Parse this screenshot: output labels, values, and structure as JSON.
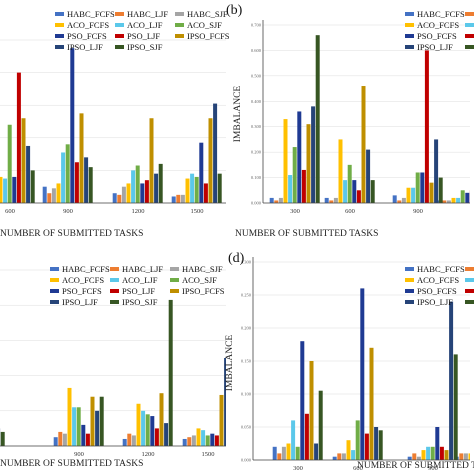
{
  "chart_data": [
    {
      "id": "a",
      "type": "bar",
      "panel_label": "",
      "xlabel": "NUMBER OF SUBMITTED TASKS",
      "ylabel": "",
      "categories": [
        "",
        "600",
        "900",
        "1200",
        "1500"
      ],
      "ylim": [
        0,
        1
      ],
      "yticks": [],
      "grid": true,
      "legend": "top-right",
      "series": [
        {
          "name": "HABC_FCFS",
          "values": [
            0.12,
            0.08,
            0.1,
            0.06,
            0.04
          ]
        },
        {
          "name": "HABC_LJF",
          "values": [
            0.1,
            0.06,
            0.06,
            0.05,
            0.05
          ]
        },
        {
          "name": "HABC_SJF",
          "values": [
            0.12,
            0.12,
            0.09,
            0.1,
            0.05
          ]
        },
        {
          "name": "ACO_FCFS",
          "values": [
            0.12,
            0.16,
            0.12,
            0.12,
            0.15
          ]
        },
        {
          "name": "ACO_LJF",
          "values": [
            0.12,
            0.15,
            0.31,
            0.2,
            0.18
          ]
        },
        {
          "name": "ACO_SJF",
          "values": [
            0.5,
            0.48,
            0.36,
            0.23,
            0.16
          ]
        },
        {
          "name": "PSO_FCFS",
          "values": [
            0.12,
            0.16,
            0.95,
            0.12,
            0.37
          ]
        },
        {
          "name": "PSO_LJF",
          "values": [
            0.8,
            0.8,
            0.25,
            0.14,
            0.12
          ]
        },
        {
          "name": "IPSO_FCFS",
          "values": [
            0.2,
            0.52,
            0.55,
            0.52,
            0.52
          ]
        },
        {
          "name": "IPSO_LJF",
          "values": [
            0.2,
            0.35,
            0.28,
            0.18,
            0.61
          ]
        },
        {
          "name": "IPSO_SJF",
          "values": [
            0.25,
            0.2,
            0.22,
            0.24,
            0.18
          ]
        }
      ]
    },
    {
      "id": "b",
      "type": "bar",
      "panel_label": "(b)",
      "xlabel": "NUMBER OF SUBMITTED TASKS",
      "ylabel": "IMBALANCE",
      "categories": [
        "300",
        "600",
        "900",
        ""
      ],
      "ylim": [
        0,
        0.7
      ],
      "yticks": [
        "0.000",
        "0.100",
        "0.200",
        "0.300",
        "0.400",
        "0.500",
        "0.600",
        "0.700"
      ],
      "grid": true,
      "legend": "top-right",
      "series": [
        {
          "name": "HABC_FCFS",
          "values": [
            0.02,
            0.02,
            0.03,
            0.01
          ]
        },
        {
          "name": "HABC_LJF",
          "values": [
            0.01,
            0.01,
            0.01,
            0.01
          ]
        },
        {
          "name": "HABC_SJF",
          "values": [
            0.02,
            0.02,
            0.02,
            0.01
          ]
        },
        {
          "name": "ACO_FCFS",
          "values": [
            0.33,
            0.25,
            0.06,
            0.02
          ]
        },
        {
          "name": "ACO_LJF",
          "values": [
            0.11,
            0.09,
            0.06,
            0.02
          ]
        },
        {
          "name": "ACO_SJF",
          "values": [
            0.22,
            0.15,
            0.12,
            0.05
          ]
        },
        {
          "name": "PSO_FCFS",
          "values": [
            0.36,
            0.09,
            0.12,
            0.04
          ]
        },
        {
          "name": "PSO_LJF",
          "values": [
            0.13,
            0.05,
            0.6,
            0.05
          ]
        },
        {
          "name": "IPSO_FCFS",
          "values": [
            0.31,
            0.46,
            0.08,
            0.06
          ]
        },
        {
          "name": "IPSO_LJF",
          "values": [
            0.38,
            0.21,
            0.25,
            0.03
          ]
        },
        {
          "name": "IPSO_SJF",
          "values": [
            0.66,
            0.09,
            0.1,
            0.04
          ]
        }
      ]
    },
    {
      "id": "c",
      "type": "bar",
      "panel_label": "",
      "xlabel": "NUMBER OF SUBMITTED TASKS",
      "ylabel": "",
      "categories": [
        "",
        "900",
        "1200",
        "1500"
      ],
      "ylim": [
        0,
        1
      ],
      "yticks": [],
      "grid": true,
      "legend": "top-right",
      "series": [
        {
          "name": "HABC_FCFS",
          "values": [
            0.04,
            0.05,
            0.04,
            0.04
          ]
        },
        {
          "name": "HABC_LJF",
          "values": [
            0.05,
            0.08,
            0.07,
            0.05
          ]
        },
        {
          "name": "HABC_SJF",
          "values": [
            0.2,
            0.07,
            0.06,
            0.06
          ]
        },
        {
          "name": "ACO_FCFS",
          "values": [
            0.09,
            0.33,
            0.24,
            0.1
          ]
        },
        {
          "name": "ACO_LJF",
          "values": [
            0.09,
            0.22,
            0.2,
            0.09
          ]
        },
        {
          "name": "ACO_SJF",
          "values": [
            0.42,
            0.22,
            0.18,
            0.06
          ]
        },
        {
          "name": "PSO_FCFS",
          "values": [
            0.08,
            0.12,
            0.17,
            0.07
          ]
        },
        {
          "name": "PSO_LJF",
          "values": [
            0.14,
            0.07,
            0.1,
            0.06
          ]
        },
        {
          "name": "IPSO_FCFS",
          "values": [
            0.1,
            0.28,
            0.3,
            0.29
          ]
        },
        {
          "name": "IPSO_LJF",
          "values": [
            0.1,
            0.2,
            0.13,
            0.5
          ]
        },
        {
          "name": "IPSO_SJF",
          "values": [
            0.08,
            0.28,
            0.83,
            0.45
          ]
        }
      ]
    },
    {
      "id": "d",
      "type": "bar",
      "panel_label": "(d)",
      "xlabel": "NUMBER OF SUBMITTED TASKS",
      "ylabel": "IMBALANCE",
      "categories": [
        "300",
        "600",
        "900",
        ""
      ],
      "ylim": [
        0,
        0.3
      ],
      "yticks": [
        "0.000",
        "0.050",
        "0.100",
        "0.150",
        "0.200",
        "0.250",
        "0.300"
      ],
      "grid": true,
      "legend": "top-right",
      "series": [
        {
          "name": "HABC_FCFS",
          "values": [
            0.02,
            0.005,
            0.005,
            0.005
          ]
        },
        {
          "name": "HABC_LJF",
          "values": [
            0.01,
            0.01,
            0.01,
            0.01
          ]
        },
        {
          "name": "HABC_SJF",
          "values": [
            0.02,
            0.01,
            0.005,
            0.01
          ]
        },
        {
          "name": "ACO_FCFS",
          "values": [
            0.025,
            0.03,
            0.015,
            0.01
          ]
        },
        {
          "name": "ACO_LJF",
          "values": [
            0.06,
            0.015,
            0.02,
            0.01
          ]
        },
        {
          "name": "ACO_SJF",
          "values": [
            0.02,
            0.06,
            0.02,
            0.01
          ]
        },
        {
          "name": "PSO_FCFS",
          "values": [
            0.18,
            0.26,
            0.05,
            0.01
          ]
        },
        {
          "name": "PSO_LJF",
          "values": [
            0.07,
            0.04,
            0.02,
            0.01
          ]
        },
        {
          "name": "IPSO_FCFS",
          "values": [
            0.15,
            0.17,
            0.015,
            0.01
          ]
        },
        {
          "name": "IPSO_LJF",
          "values": [
            0.025,
            0.05,
            0.24,
            0.02
          ]
        },
        {
          "name": "IPSO_SJF",
          "values": [
            0.105,
            0.045,
            0.16,
            0.02
          ]
        }
      ]
    }
  ],
  "colors": {
    "HABC_FCFS": "#4472c4",
    "HABC_LJF": "#ed7d31",
    "HABC_SJF": "#a5a5a5",
    "ACO_FCFS": "#ffc000",
    "ACO_LJF": "#5bc8ea",
    "ACO_SJF": "#70ad47",
    "PSO_FCFS": "#1f3a93",
    "PSO_LJF": "#c00000",
    "IPSO_FCFS": "#bf8f00",
    "IPSO_LJF": "#264478",
    "IPSO_SJF": "#375623"
  }
}
